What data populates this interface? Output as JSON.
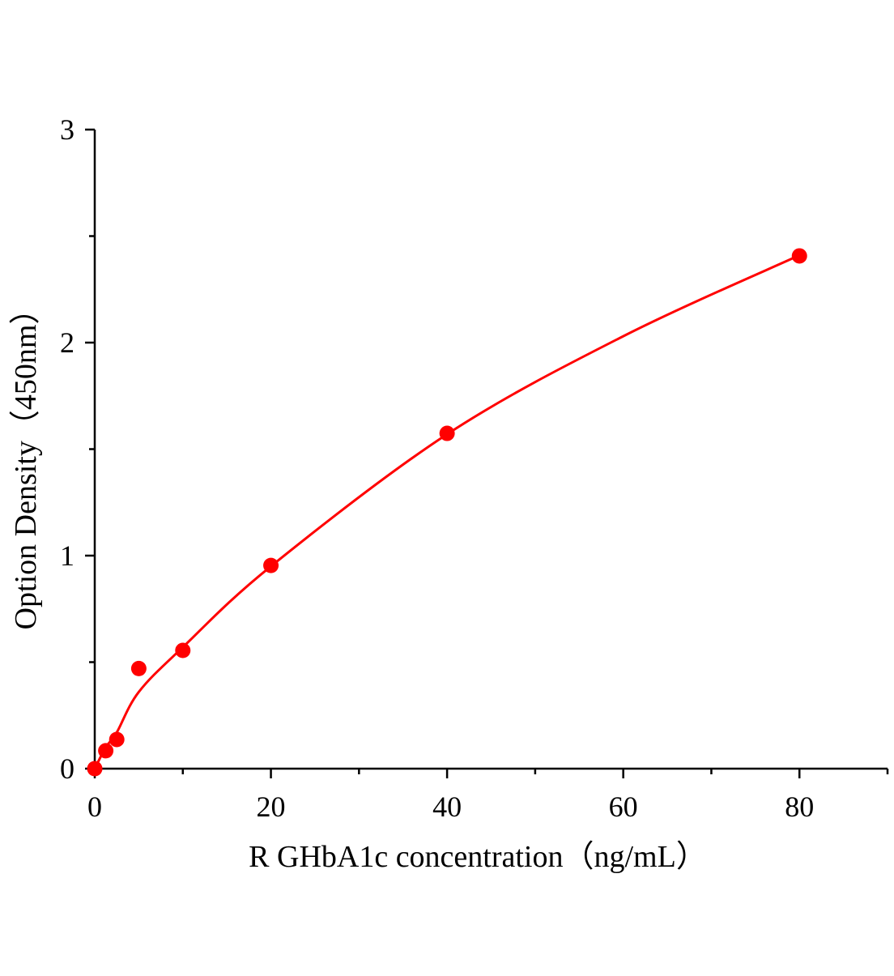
{
  "chart_data": {
    "type": "scatter",
    "title": "",
    "xlabel": "R GHbA1c  concentration（ng/mL）",
    "ylabel": "Option Density（450nm）",
    "xlim": [
      0,
      90
    ],
    "ylim": [
      0,
      3
    ],
    "x_ticks": [
      0,
      20,
      40,
      60,
      80
    ],
    "y_ticks": [
      0,
      1,
      2,
      3
    ],
    "grid": false,
    "point_color": "#ff0000",
    "line_color": "#ff0000",
    "points": {
      "x": [
        0,
        1.25,
        2.5,
        5,
        10,
        20,
        40,
        80
      ],
      "y": [
        0.0,
        0.084,
        0.137,
        0.47,
        0.555,
        0.954,
        1.574,
        2.407
      ]
    },
    "fit_curve": {
      "x": [
        0,
        1.25,
        2.5,
        5,
        10,
        20,
        40,
        60,
        80
      ],
      "y": [
        0.0,
        0.1,
        0.17,
        0.36,
        0.57,
        0.95,
        1.57,
        2.03,
        2.41
      ]
    }
  }
}
